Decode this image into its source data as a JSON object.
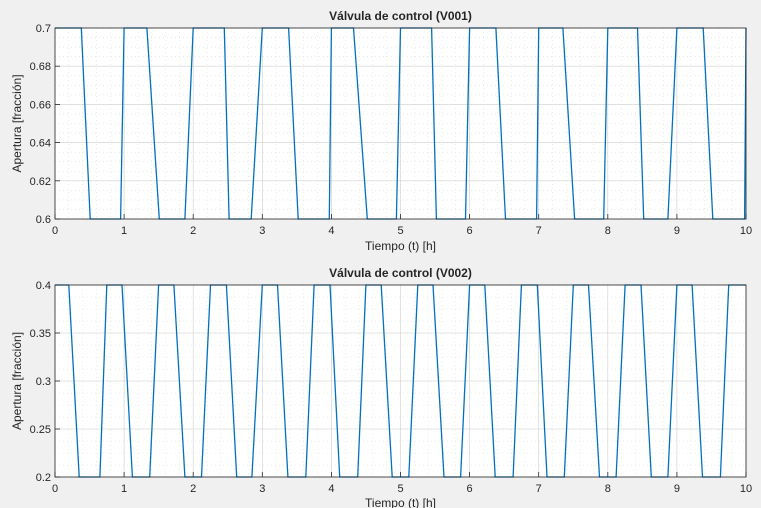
{
  "chart_data": [
    {
      "type": "line",
      "title": "Válvula de control (V001)",
      "xlabel": "Tiempo (t) [h]",
      "ylabel": "Apertura [fracción]",
      "xlim": [
        0,
        10
      ],
      "ylim": [
        0.6,
        0.7
      ],
      "x_ticks": [
        0,
        1,
        2,
        3,
        4,
        5,
        6,
        7,
        8,
        9,
        10
      ],
      "x_tick_labels": [
        "0",
        "1",
        "2",
        "3",
        "4",
        "5",
        "6",
        "7",
        "8",
        "9",
        "10"
      ],
      "y_ticks": [
        0.6,
        0.62,
        0.64,
        0.66,
        0.68,
        0.7
      ],
      "y_tick_labels": [
        "0.6",
        "0.62",
        "0.64",
        "0.66",
        "0.68",
        "0.7"
      ],
      "grid": true,
      "line_color": "#0072bd",
      "series": [
        {
          "x": [
            0,
            0.38,
            0.51,
            0.95,
            1.0,
            1.33,
            1.51,
            1.88,
            2.0,
            2.45,
            2.52,
            2.84,
            3.0,
            3.38,
            3.52,
            3.97,
            4.0,
            4.32,
            4.52,
            4.94,
            5.0,
            5.45,
            5.52,
            5.94,
            6.0,
            6.38,
            6.52,
            6.97,
            7.0,
            7.35,
            7.52,
            7.94,
            8.0,
            8.43,
            8.52,
            8.87,
            9.0,
            9.38,
            9.52,
            9.98,
            10.0
          ],
          "y": [
            0.7,
            0.7,
            0.6,
            0.6,
            0.7,
            0.7,
            0.6,
            0.6,
            0.7,
            0.7,
            0.6,
            0.6,
            0.7,
            0.7,
            0.6,
            0.6,
            0.7,
            0.7,
            0.6,
            0.6,
            0.7,
            0.7,
            0.6,
            0.6,
            0.7,
            0.7,
            0.6,
            0.6,
            0.7,
            0.7,
            0.6,
            0.6,
            0.7,
            0.7,
            0.6,
            0.6,
            0.7,
            0.7,
            0.6,
            0.6,
            0.7
          ]
        }
      ]
    },
    {
      "type": "line",
      "title": "Válvula de control (V002)",
      "xlabel": "Tiempo (t) [h]",
      "ylabel": "Apertura [fracción]",
      "xlim": [
        0,
        10
      ],
      "ylim": [
        0.2,
        0.4
      ],
      "x_ticks": [
        0,
        1,
        2,
        3,
        4,
        5,
        6,
        7,
        8,
        9,
        10
      ],
      "x_tick_labels": [
        "0",
        "1",
        "2",
        "3",
        "4",
        "5",
        "6",
        "7",
        "8",
        "9",
        "10"
      ],
      "y_ticks": [
        0.2,
        0.25,
        0.3,
        0.35,
        0.4
      ],
      "y_tick_labels": [
        "0.2",
        "0.25",
        "0.3",
        "0.35",
        "0.4"
      ],
      "grid": true,
      "line_color": "#0072bd",
      "series": [
        {
          "x": [
            0,
            0.2,
            0.35,
            0.65,
            0.75,
            0.97,
            1.12,
            1.37,
            1.5,
            1.72,
            1.88,
            2.12,
            2.25,
            2.48,
            2.63,
            2.85,
            3.0,
            3.22,
            3.37,
            3.63,
            3.75,
            3.98,
            4.12,
            4.38,
            4.5,
            4.72,
            4.88,
            5.12,
            5.25,
            5.47,
            5.63,
            5.87,
            6.0,
            6.22,
            6.37,
            6.63,
            6.75,
            6.98,
            7.12,
            7.37,
            7.5,
            7.72,
            7.88,
            8.12,
            8.25,
            8.48,
            8.63,
            8.87,
            9.0,
            9.22,
            9.37,
            9.63,
            9.75,
            10.0
          ],
          "y": [
            0.4,
            0.4,
            0.2,
            0.2,
            0.4,
            0.4,
            0.2,
            0.2,
            0.4,
            0.4,
            0.2,
            0.2,
            0.4,
            0.4,
            0.2,
            0.2,
            0.4,
            0.4,
            0.2,
            0.2,
            0.4,
            0.4,
            0.2,
            0.2,
            0.4,
            0.4,
            0.2,
            0.2,
            0.4,
            0.4,
            0.2,
            0.2,
            0.4,
            0.4,
            0.2,
            0.2,
            0.4,
            0.4,
            0.2,
            0.2,
            0.4,
            0.4,
            0.2,
            0.2,
            0.4,
            0.4,
            0.2,
            0.2,
            0.4,
            0.4,
            0.2,
            0.2,
            0.4,
            0.4
          ]
        }
      ]
    }
  ]
}
